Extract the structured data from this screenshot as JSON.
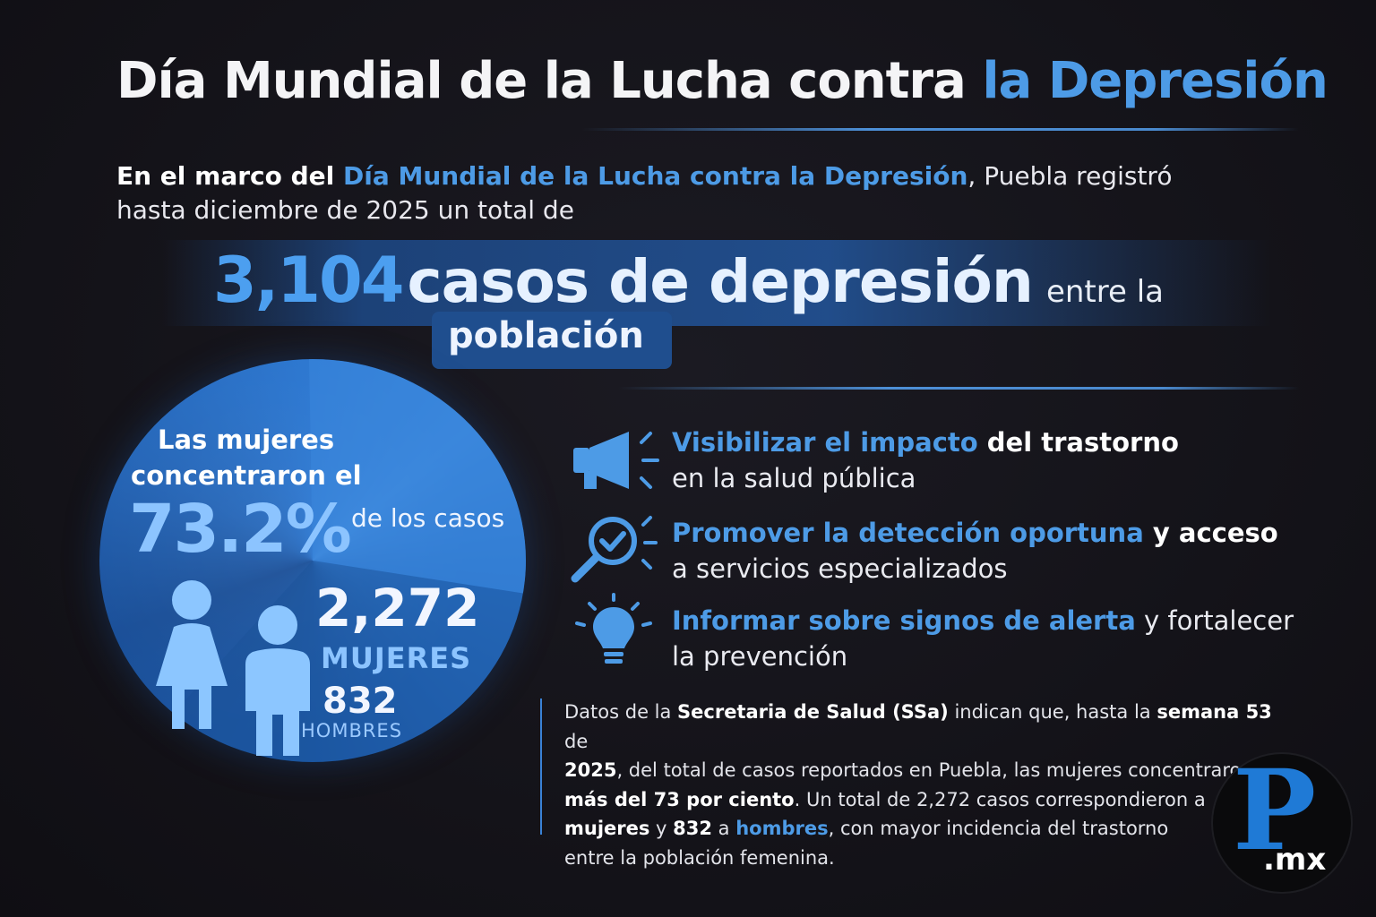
{
  "title": {
    "part1": "Día Mundial de la Lucha contra ",
    "part2": "la Depresión"
  },
  "intro": {
    "lead": "En el marco del ",
    "highlight": "Día Mundial de la Lucha contra la Depresión",
    "rest1": ", Puebla registró",
    "line2": "hasta diciembre de 2025 un total de"
  },
  "headline": {
    "number": "3,104",
    "text": "casos de depresión",
    "small": "entre la",
    "box": "población"
  },
  "pie": {
    "line1": "Las mujeres",
    "line2": "concentraron el",
    "percent": "73.2%",
    "of_cases": "de los casos",
    "women_count": "2,272",
    "women_label": "MUJERES",
    "men_count": "832",
    "men_label": "HOMBRES",
    "women_share": 0.732
  },
  "items": [
    {
      "icon": "megaphone-icon",
      "hl": "Visibilizar el impacto",
      "bold": " del trastorno",
      "rest": "en la salud pública"
    },
    {
      "icon": "magnifier-check-icon",
      "hl": "Promover la detección oportuna",
      "bold": " y acceso",
      "rest": "a servicios especializados"
    },
    {
      "icon": "lightbulb-icon",
      "hl": "Informar sobre signos de alerta",
      "bold": " y fortalecer",
      "rest": "la prevención"
    }
  ],
  "paragraph": {
    "t1": "Datos de la ",
    "b1": "Secretaria de Salud (SSa)",
    "t2": " indican que, hasta la ",
    "b2": "semana 53",
    "t3": " de",
    "b3": "2025",
    "t4": ", del total de casos reportados en Puebla, las mujeres concentraron",
    "b4": "más del 73 por ciento",
    "t5": ". Un total de 2,272 casos correspondieron a",
    "b5": "mujeres",
    "t6": " y ",
    "b6": "832",
    "t7": " a ",
    "b7": "hombres",
    "t8": ", con mayor incidencia del trastorno",
    "t9": "entre la población femenina."
  },
  "logo": {
    "letter": "P",
    "suffix": ".mx"
  },
  "colors": {
    "accent": "#4d9be6",
    "background": "#141319",
    "pie": "#2a6fc4"
  }
}
